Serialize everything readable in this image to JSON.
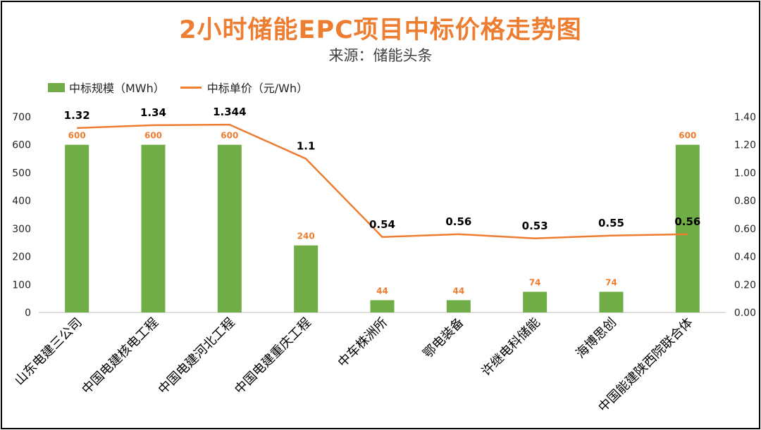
{
  "page": {
    "title": "2小时储能EPC项目中标价格走势图",
    "subtitle": "来源：储能头条"
  },
  "legend": {
    "bar_label": "中标规模（MWh）",
    "line_label": "中标单价（元/Wh）"
  },
  "colors": {
    "bar": "#70AD47",
    "line": "#ED7D31",
    "bar_value_label": "#ED7D31",
    "line_value_label": "#000000",
    "axis_text": "#222222",
    "axis_line": "#BFBFBF"
  },
  "chart_data": {
    "type": "bar",
    "title": "2小时储能EPC项目中标价格走势图",
    "subtitle": "来源：储能头条",
    "categories": [
      "山东电建三公司",
      "中国电建核电工程",
      "中国电建河北工程",
      "中国电建重庆工程",
      "中车株洲所",
      "鄂电装备",
      "许继电科储能",
      "海博思创",
      "中国能建陕西院联合体"
    ],
    "series": [
      {
        "name": "中标规模（MWh）",
        "type": "bar",
        "axis": "left",
        "values": [
          600,
          600,
          600,
          240,
          44,
          44,
          74,
          74,
          600
        ],
        "labels": [
          "600",
          "600",
          "600",
          "240",
          "44",
          "44",
          "74",
          "74",
          "600"
        ]
      },
      {
        "name": "中标单价（元/Wh）",
        "type": "line",
        "axis": "right",
        "values": [
          1.32,
          1.34,
          1.344,
          1.1,
          0.54,
          0.56,
          0.53,
          0.55,
          0.56
        ],
        "labels": [
          "1.32",
          "1.34",
          "1.344",
          "1.1",
          "0.54",
          "0.56",
          "0.53",
          "0.55",
          "0.56"
        ]
      }
    ],
    "y_left": {
      "ylim": [
        0,
        700
      ],
      "ticks": [
        0,
        100,
        200,
        300,
        400,
        500,
        600,
        700
      ],
      "tick_labels": [
        "0",
        "100",
        "200",
        "300",
        "400",
        "500",
        "600",
        "700"
      ]
    },
    "y_right": {
      "ylim": [
        0,
        1.4
      ],
      "ticks": [
        0,
        0.2,
        0.4,
        0.6,
        0.8,
        1.0,
        1.2,
        1.4
      ],
      "tick_labels": [
        "0.00",
        "0.20",
        "0.40",
        "0.60",
        "0.80",
        "1.00",
        "1.20",
        "1.40"
      ]
    },
    "grid": false,
    "legend_position": "top-left"
  }
}
